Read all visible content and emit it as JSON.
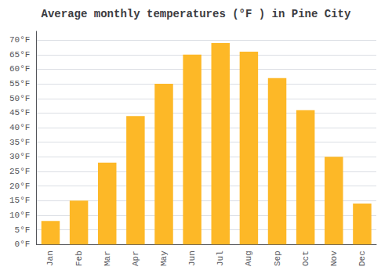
{
  "chart_data": {
    "type": "bar",
    "title": "Average monthly temperatures (°F ) in Pine City",
    "categories": [
      "Jan",
      "Feb",
      "Mar",
      "Apr",
      "May",
      "Jun",
      "Jul",
      "Aug",
      "Sep",
      "Oct",
      "Nov",
      "Dec"
    ],
    "values": [
      8,
      15,
      28,
      44,
      55,
      65,
      69,
      66,
      57,
      46,
      30,
      14
    ],
    "color": "#FDB827",
    "ylim": [
      0,
      73
    ],
    "yticks": [
      {
        "value": 0,
        "label": "0°F"
      },
      {
        "value": 5,
        "label": "5°F"
      },
      {
        "value": 10,
        "label": "10°F"
      },
      {
        "value": 15,
        "label": "15°F"
      },
      {
        "value": 20,
        "label": "20°F"
      },
      {
        "value": 25,
        "label": "25°F"
      },
      {
        "value": 30,
        "label": "30°F"
      },
      {
        "value": 35,
        "label": "35°F"
      },
      {
        "value": 40,
        "label": "40°F"
      },
      {
        "value": 45,
        "label": "45°F"
      },
      {
        "value": 50,
        "label": "50°F"
      },
      {
        "value": 55,
        "label": "55°F"
      },
      {
        "value": 60,
        "label": "60°F"
      },
      {
        "value": 65,
        "label": "65°F"
      },
      {
        "value": 70,
        "label": "70°F"
      }
    ],
    "grid": true
  }
}
